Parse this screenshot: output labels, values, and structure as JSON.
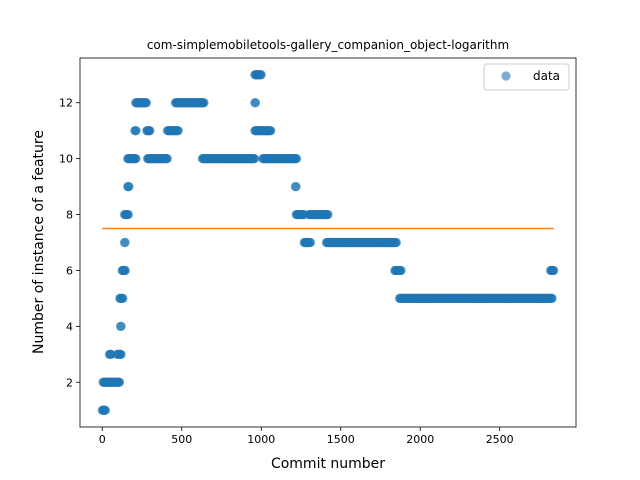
{
  "chart_data": {
    "type": "scatter",
    "title": "com-simplemobiletools-gallery_companion_object-logarithm",
    "xlabel": "Commit number",
    "ylabel": "Number of instance of a feature",
    "xlim": [
      -140,
      2980
    ],
    "ylim": [
      0.4,
      13.6
    ],
    "xticks": [
      0,
      500,
      1000,
      1500,
      2000,
      2500
    ],
    "yticks": [
      2,
      4,
      6,
      8,
      10,
      12
    ],
    "grid": false,
    "legend": {
      "placement": "top-right",
      "entries": [
        "data"
      ]
    },
    "colors": {
      "data": "#1f77b4",
      "trend": "#ff7f0e"
    },
    "series": [
      {
        "name": "data",
        "kind": "scatter",
        "segments": [
          {
            "x_start": 0,
            "x_end": 20,
            "y": 1
          },
          {
            "x_start": 5,
            "x_end": 110,
            "y": 2
          },
          {
            "x_start": 45,
            "x_end": 60,
            "y": 3
          },
          {
            "x_start": 95,
            "x_end": 120,
            "y": 3
          },
          {
            "x_start": 115,
            "x_end": 120,
            "y": 4
          },
          {
            "x_start": 110,
            "x_end": 130,
            "y": 5
          },
          {
            "x_start": 125,
            "x_end": 145,
            "y": 6
          },
          {
            "x_start": 140,
            "x_end": 145,
            "y": 7
          },
          {
            "x_start": 140,
            "x_end": 165,
            "y": 8
          },
          {
            "x_start": 160,
            "x_end": 170,
            "y": 9
          },
          {
            "x_start": 160,
            "x_end": 215,
            "y": 10
          },
          {
            "x_start": 205,
            "x_end": 215,
            "y": 11
          },
          {
            "x_start": 210,
            "x_end": 280,
            "y": 12
          },
          {
            "x_start": 280,
            "x_end": 300,
            "y": 11
          },
          {
            "x_start": 285,
            "x_end": 410,
            "y": 10
          },
          {
            "x_start": 410,
            "x_end": 480,
            "y": 11
          },
          {
            "x_start": 460,
            "x_end": 640,
            "y": 12
          },
          {
            "x_start": 630,
            "x_end": 960,
            "y": 10
          },
          {
            "x_start": 960,
            "x_end": 965,
            "y": 12
          },
          {
            "x_start": 960,
            "x_end": 1000,
            "y": 13
          },
          {
            "x_start": 960,
            "x_end": 1060,
            "y": 11
          },
          {
            "x_start": 1010,
            "x_end": 1225,
            "y": 10
          },
          {
            "x_start": 1215,
            "x_end": 1220,
            "y": 9
          },
          {
            "x_start": 1220,
            "x_end": 1270,
            "y": 8
          },
          {
            "x_start": 1270,
            "x_end": 1310,
            "y": 7
          },
          {
            "x_start": 1300,
            "x_end": 1420,
            "y": 8
          },
          {
            "x_start": 1410,
            "x_end": 1850,
            "y": 7
          },
          {
            "x_start": 1840,
            "x_end": 1880,
            "y": 6
          },
          {
            "x_start": 1870,
            "x_end": 2830,
            "y": 5
          },
          {
            "x_start": 2820,
            "x_end": 2840,
            "y": 6
          }
        ],
        "isolated_points": [
          {
            "x": 115,
            "y": 4
          },
          {
            "x": 960,
            "y": 12
          },
          {
            "x": 1215,
            "y": 9
          }
        ]
      },
      {
        "name": "",
        "kind": "line",
        "x": [
          0,
          2840
        ],
        "y": [
          7.5,
          7.5
        ]
      }
    ]
  }
}
